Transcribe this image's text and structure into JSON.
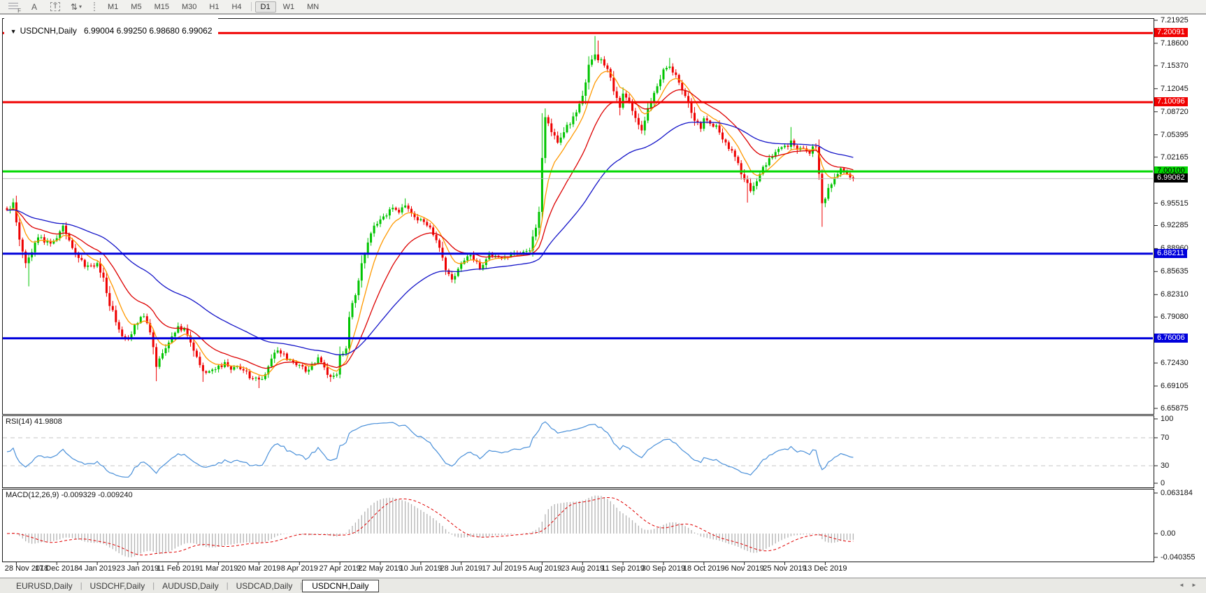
{
  "toolbar": {
    "tools": [
      {
        "name": "fibonacci-grid",
        "glyph": "F"
      },
      {
        "name": "text-tool",
        "glyph": "A"
      },
      {
        "name": "text-label-tool",
        "glyph": "T"
      },
      {
        "name": "arrow-objects-tool",
        "glyph": "⇅",
        "caret": "▾"
      }
    ],
    "timeframes": [
      {
        "label": "M1",
        "active": false
      },
      {
        "label": "M5",
        "active": false
      },
      {
        "label": "M15",
        "active": false
      },
      {
        "label": "M30",
        "active": false
      },
      {
        "label": "H1",
        "active": false
      },
      {
        "label": "H4",
        "active": false
      },
      {
        "label": "D1",
        "active": true
      },
      {
        "label": "W1",
        "active": false
      },
      {
        "label": "MN",
        "active": false
      }
    ]
  },
  "chart": {
    "collapse_glyph": "▼",
    "title_symbol": "USDCNH,Daily",
    "ohlc": {
      "open": "6.99004",
      "high": "6.99250",
      "low": "6.98680",
      "close": "6.99062"
    }
  },
  "chart_data": {
    "type": "candlestick",
    "symbol": "USDCNH",
    "timeframe": "Daily",
    "bars_total": 273,
    "y_axis": {
      "min": 6.65875,
      "max": 7.21925,
      "ticks": [
        "7.21925",
        "7.18600",
        "7.15370",
        "7.12045",
        "7.08720",
        "7.05395",
        "7.02165",
        "6.95515",
        "6.92285",
        "6.88960",
        "6.85635",
        "6.82310",
        "6.79080",
        "6.72430",
        "6.69105",
        "6.65875"
      ]
    },
    "x_labels": [
      {
        "label": "28 Nov 2018",
        "bar": 3
      },
      {
        "label": "17 Dec 2018",
        "bar": 16
      },
      {
        "label": "4 Jan 2019",
        "bar": 29
      },
      {
        "label": "23 Jan 2019",
        "bar": 42
      },
      {
        "label": "11 Feb 2019",
        "bar": 55
      },
      {
        "label": "1 Mar 2019",
        "bar": 68
      },
      {
        "label": "20 Mar 2019",
        "bar": 81
      },
      {
        "label": "8 Apr 2019",
        "bar": 94
      },
      {
        "label": "27 Apr 2019",
        "bar": 107
      },
      {
        "label": "22 May 2019",
        "bar": 120
      },
      {
        "label": "10 Jun 2019",
        "bar": 133
      },
      {
        "label": "28 Jun 2019",
        "bar": 146
      },
      {
        "label": "17 Jul 2019",
        "bar": 159
      },
      {
        "label": "5 Aug 2019",
        "bar": 172
      },
      {
        "label": "23 Aug 2019",
        "bar": 185
      },
      {
        "label": "11 Sep 2019",
        "bar": 198
      },
      {
        "label": "30 Sep 2019",
        "bar": 211
      },
      {
        "label": "18 Oct 2019",
        "bar": 224
      },
      {
        "label": "6 Nov 2019",
        "bar": 237
      },
      {
        "label": "25 Nov 2019",
        "bar": 250
      },
      {
        "label": "13 Dec 2019",
        "bar": 263
      }
    ],
    "close_waypoints": [
      [
        0,
        6.945
      ],
      [
        2,
        6.955
      ],
      [
        4,
        6.9
      ],
      [
        6,
        6.868
      ],
      [
        8,
        6.882
      ],
      [
        10,
        6.908
      ],
      [
        13,
        6.897
      ],
      [
        16,
        6.905
      ],
      [
        18,
        6.924
      ],
      [
        20,
        6.9
      ],
      [
        23,
        6.875
      ],
      [
        26,
        6.862
      ],
      [
        29,
        6.868
      ],
      [
        31,
        6.845
      ],
      [
        33,
        6.81
      ],
      [
        35,
        6.785
      ],
      [
        37,
        6.765
      ],
      [
        39,
        6.758
      ],
      [
        42,
        6.785
      ],
      [
        44,
        6.792
      ],
      [
        46,
        6.77
      ],
      [
        48,
        6.72
      ],
      [
        50,
        6.735
      ],
      [
        52,
        6.757
      ],
      [
        55,
        6.775
      ],
      [
        57,
        6.772
      ],
      [
        59,
        6.755
      ],
      [
        61,
        6.73
      ],
      [
        63,
        6.71
      ],
      [
        65,
        6.712
      ],
      [
        68,
        6.72
      ],
      [
        70,
        6.723
      ],
      [
        72,
        6.715
      ],
      [
        74,
        6.72
      ],
      [
        76,
        6.713
      ],
      [
        78,
        6.705
      ],
      [
        81,
        6.699
      ],
      [
        83,
        6.705
      ],
      [
        85,
        6.73
      ],
      [
        87,
        6.745
      ],
      [
        89,
        6.735
      ],
      [
        91,
        6.728
      ],
      [
        94,
        6.72
      ],
      [
        96,
        6.713
      ],
      [
        98,
        6.72
      ],
      [
        100,
        6.73
      ],
      [
        102,
        6.718
      ],
      [
        104,
        6.703
      ],
      [
        106,
        6.71
      ],
      [
        107,
        6.735
      ],
      [
        109,
        6.745
      ],
      [
        110,
        6.79
      ],
      [
        112,
        6.825
      ],
      [
        114,
        6.865
      ],
      [
        116,
        6.9
      ],
      [
        118,
        6.92
      ],
      [
        120,
        6.93
      ],
      [
        122,
        6.94
      ],
      [
        124,
        6.95
      ],
      [
        126,
        6.945
      ],
      [
        128,
        6.952
      ],
      [
        130,
        6.94
      ],
      [
        133,
        6.93
      ],
      [
        136,
        6.918
      ],
      [
        139,
        6.89
      ],
      [
        141,
        6.86
      ],
      [
        143,
        6.845
      ],
      [
        146,
        6.87
      ],
      [
        149,
        6.878
      ],
      [
        152,
        6.862
      ],
      [
        155,
        6.88
      ],
      [
        159,
        6.877
      ],
      [
        162,
        6.882
      ],
      [
        165,
        6.885
      ],
      [
        168,
        6.89
      ],
      [
        170,
        6.92
      ],
      [
        171,
        6.945
      ],
      [
        172,
        7.02
      ],
      [
        173,
        7.08
      ],
      [
        175,
        7.06
      ],
      [
        177,
        7.04
      ],
      [
        179,
        7.06
      ],
      [
        181,
        7.07
      ],
      [
        183,
        7.085
      ],
      [
        185,
        7.11
      ],
      [
        187,
        7.155
      ],
      [
        189,
        7.17
      ],
      [
        191,
        7.16
      ],
      [
        193,
        7.15
      ],
      [
        195,
        7.12
      ],
      [
        197,
        7.09
      ],
      [
        198,
        7.11
      ],
      [
        200,
        7.1
      ],
      [
        202,
        7.075
      ],
      [
        204,
        7.06
      ],
      [
        206,
        7.09
      ],
      [
        208,
        7.115
      ],
      [
        210,
        7.135
      ],
      [
        211,
        7.145
      ],
      [
        213,
        7.15
      ],
      [
        215,
        7.14
      ],
      [
        217,
        7.12
      ],
      [
        219,
        7.1
      ],
      [
        221,
        7.075
      ],
      [
        223,
        7.065
      ],
      [
        224,
        7.08
      ],
      [
        226,
        7.07
      ],
      [
        228,
        7.065
      ],
      [
        230,
        7.045
      ],
      [
        232,
        7.035
      ],
      [
        234,
        7.02
      ],
      [
        236,
        7.0
      ],
      [
        237,
        6.99
      ],
      [
        239,
        6.972
      ],
      [
        241,
        6.985
      ],
      [
        243,
        7.005
      ],
      [
        245,
        7.02
      ],
      [
        247,
        7.03
      ],
      [
        249,
        7.035
      ],
      [
        250,
        7.035
      ],
      [
        252,
        7.045
      ],
      [
        254,
        7.03
      ],
      [
        256,
        7.035
      ],
      [
        258,
        7.03
      ],
      [
        260,
        7.038
      ],
      [
        261,
        7.0
      ],
      [
        262,
        6.955
      ],
      [
        264,
        6.975
      ],
      [
        266,
        6.995
      ],
      [
        268,
        7.005
      ],
      [
        270,
        6.998
      ],
      [
        272,
        6.9906
      ]
    ],
    "wick_overrides": {
      "highs": [
        [
          2,
          6.962
        ],
        [
          128,
          6.962
        ],
        [
          172,
          7.085
        ],
        [
          189,
          7.1965
        ],
        [
          190,
          7.19
        ],
        [
          213,
          7.165
        ],
        [
          252,
          7.065
        ]
      ],
      "lows": [
        [
          7,
          6.835
        ],
        [
          48,
          6.698
        ],
        [
          63,
          6.697
        ],
        [
          81,
          6.688
        ],
        [
          104,
          6.697
        ],
        [
          197,
          7.082
        ],
        [
          238,
          6.956
        ],
        [
          262,
          6.921
        ]
      ]
    },
    "candle_colors": {
      "up": "#00C400",
      "down": "#EE0000"
    },
    "moving_averages": [
      {
        "name": "fast",
        "period": 8,
        "color": "#FF9900"
      },
      {
        "name": "medium",
        "period": 21,
        "color": "#DD0000"
      },
      {
        "name": "slow",
        "period": 55,
        "color": "#1414C8"
      }
    ],
    "hlines": [
      {
        "price": 7.20091,
        "label": "7.20091",
        "color": "#F00000",
        "width": 3,
        "badge_bg": "#F00000",
        "badge_fg": "#FFFFFF"
      },
      {
        "price": 7.10096,
        "label": "7.10096",
        "color": "#F00000",
        "width": 3,
        "badge_bg": "#F00000",
        "badge_fg": "#FFFFFF"
      },
      {
        "price": 7.001,
        "label": "7.00100",
        "color": "#00D800",
        "width": 3,
        "badge_bg": "#00D800",
        "badge_fg": "#000000"
      },
      {
        "price": 6.99062,
        "label": "6.99062",
        "color": "#BBBBBB",
        "width": 1,
        "badge_bg": "#000000",
        "badge_fg": "#FFFFFF",
        "role": "current-price"
      },
      {
        "price": 6.88211,
        "label": "6.88211",
        "color": "#0000DC",
        "width": 3,
        "badge_bg": "#0000DC",
        "badge_fg": "#FFFFFF"
      },
      {
        "price": 6.76006,
        "label": "6.76006",
        "color": "#0000DC",
        "width": 3,
        "badge_bg": "#0000DC",
        "badge_fg": "#FFFFFF"
      }
    ],
    "indicators": {
      "rsi": {
        "label": "RSI(14) 41.9808",
        "period": 14,
        "value": "41.9808",
        "line_color": "#4A90D9",
        "levels": [
          70,
          30
        ],
        "range": [
          0,
          100
        ],
        "axis_ticks": [
          "100",
          "70",
          "30",
          "0"
        ]
      },
      "macd": {
        "label": "MACD(12,26,9) -0.009329 -0.009240",
        "fast": 12,
        "slow": 26,
        "signal": 9,
        "value_main": "-0.009329",
        "value_signal": "-0.009240",
        "hist_color": "#B2B2B2",
        "signal_color": "#E00000",
        "axis_ticks": [
          "0.063184",
          "0.00",
          "-0.040355"
        ],
        "range": [
          -0.040355,
          0.063184
        ]
      }
    }
  },
  "tabs": {
    "items": [
      {
        "label": "EURUSD,Daily",
        "active": false
      },
      {
        "label": "USDCHF,Daily",
        "active": false
      },
      {
        "label": "AUDUSD,Daily",
        "active": false
      },
      {
        "label": "USDCAD,Daily",
        "active": false
      },
      {
        "label": "USDCNH,Daily",
        "active": true
      }
    ],
    "scroll_left_glyph": "◄",
    "scroll_right_glyph": "►"
  }
}
